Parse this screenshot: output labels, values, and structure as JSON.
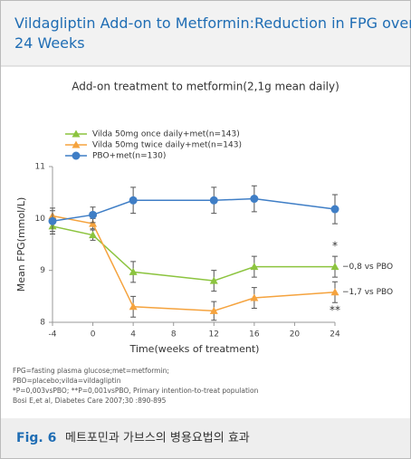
{
  "chart_data": {
    "type": "line",
    "title": "Vildagliptin Add-on to Metformin:Reduction in FPG over 24 Weeks",
    "subtitle": "Add-on treatment to metformin(2,1g mean daily)",
    "x_label": "Time(weeks of treatment)",
    "y_label": "Mean FPG(mmol/L)",
    "x": [
      -4,
      0,
      4,
      12,
      16,
      24
    ],
    "series": [
      {
        "name": "Vilda 50mg once daily+met(n=143)",
        "color": "#8cc43f",
        "marker": "triangle",
        "values": [
          9.85,
          9.68,
          8.97,
          8.8,
          9.07,
          9.07
        ],
        "errors": [
          0.15,
          0.1,
          0.2,
          0.2,
          0.2,
          0.2
        ]
      },
      {
        "name": "Vilda 50mg twice daily+met(n=143)",
        "color": "#f5a33e",
        "marker": "triangle",
        "values": [
          10.05,
          9.9,
          8.3,
          8.22,
          8.47,
          8.58
        ],
        "errors": [
          0.15,
          0.1,
          0.2,
          0.18,
          0.2,
          0.2
        ]
      },
      {
        "name": "PBO+met(n=130)",
        "color": "#3f7ec6",
        "marker": "circle",
        "values": [
          9.95,
          10.07,
          10.35,
          10.35,
          10.38,
          10.18
        ],
        "errors": [
          0.2,
          0.15,
          0.25,
          0.25,
          0.25,
          0.28
        ]
      }
    ],
    "annotations": [
      "*",
      "−0,8 vs PBO",
      "−1,7 vs PBO",
      "**"
    ],
    "xlim": [
      -4,
      24
    ],
    "xticks": [
      -4,
      0,
      4,
      8,
      12,
      16,
      20,
      24
    ],
    "ylim": [
      8,
      11
    ],
    "yticks": [
      8,
      9,
      10,
      11
    ],
    "footnotes": [
      "FPG=fasting plasma glucose;met=metformin;",
      "PBO=placebo;vilda=vildagliptin",
      "*P=0,003vsPBO; **P=0,001vsPBO, Primary intention-to-treat population",
      "Bosi E,et al, Diabetes Care 2007;30 :890-895"
    ],
    "figure_label": "Fig. 6",
    "caption": "메트포민과 가브스의 병용요법의 효과"
  }
}
